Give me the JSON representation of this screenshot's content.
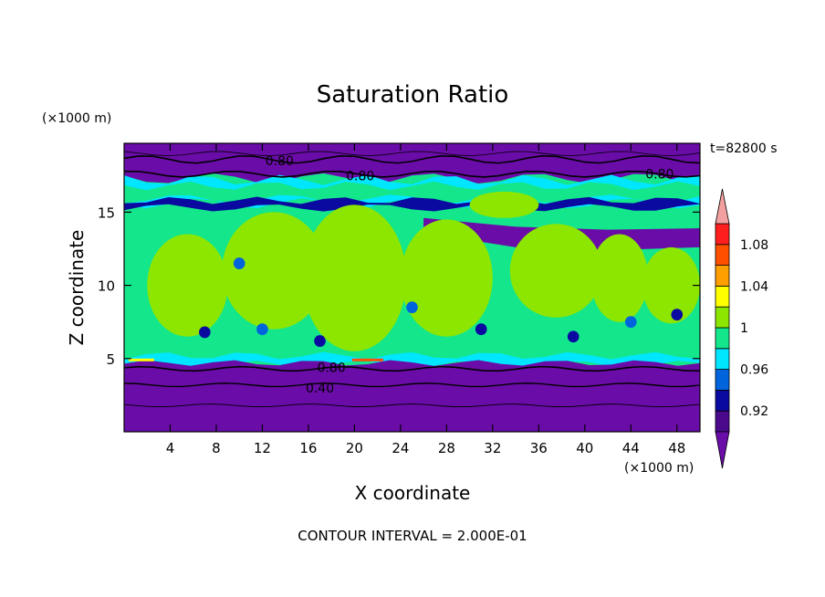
{
  "chart_data": {
    "type": "heatmap",
    "title": "Saturation Ratio",
    "time_label": "t=82800 s",
    "xlabel": "X coordinate",
    "ylabel": "Z coordinate",
    "x_unit": "(×1000 m)",
    "y_unit": "(×1000 m)",
    "footer": "CONTOUR INTERVAL = 2.000E-01",
    "xlim": [
      0,
      50
    ],
    "ylim": [
      0,
      19.7
    ],
    "x_ticks": [
      4,
      8,
      12,
      16,
      20,
      24,
      28,
      32,
      36,
      40,
      44,
      48
    ],
    "y_ticks": [
      5,
      10,
      15
    ],
    "colorbar": {
      "levels": [
        0.9,
        0.92,
        0.94,
        0.96,
        0.98,
        1.0,
        1.02,
        1.04,
        1.06,
        1.08,
        1.1
      ],
      "colors": [
        "#4b0a8c",
        "#0a0aa0",
        "#0064dc",
        "#00e6ff",
        "#14e68c",
        "#8ce600",
        "#ffff00",
        "#ffa000",
        "#ff5000",
        "#ff1e1e"
      ],
      "under_color": "#6a0ca8",
      "over_color": "#f5a0a0",
      "labels": [
        {
          "value": 0.92,
          "text": "0.92"
        },
        {
          "value": 0.96,
          "text": "0.96"
        },
        {
          "value": 1.0,
          "text": "1"
        },
        {
          "value": 1.04,
          "text": "1.04"
        },
        {
          "value": 1.08,
          "text": "1.08"
        }
      ]
    },
    "contour_labels": [
      {
        "x": 13.5,
        "y": 18.5,
        "text": "0.80"
      },
      {
        "x": 20.5,
        "y": 17.5,
        "text": "0.80"
      },
      {
        "x": 46.5,
        "y": 17.6,
        "text": "0.80"
      },
      {
        "x": 18.0,
        "y": 4.4,
        "text": "0.80"
      },
      {
        "x": 17.0,
        "y": 3.0,
        "text": "0.40"
      }
    ]
  }
}
